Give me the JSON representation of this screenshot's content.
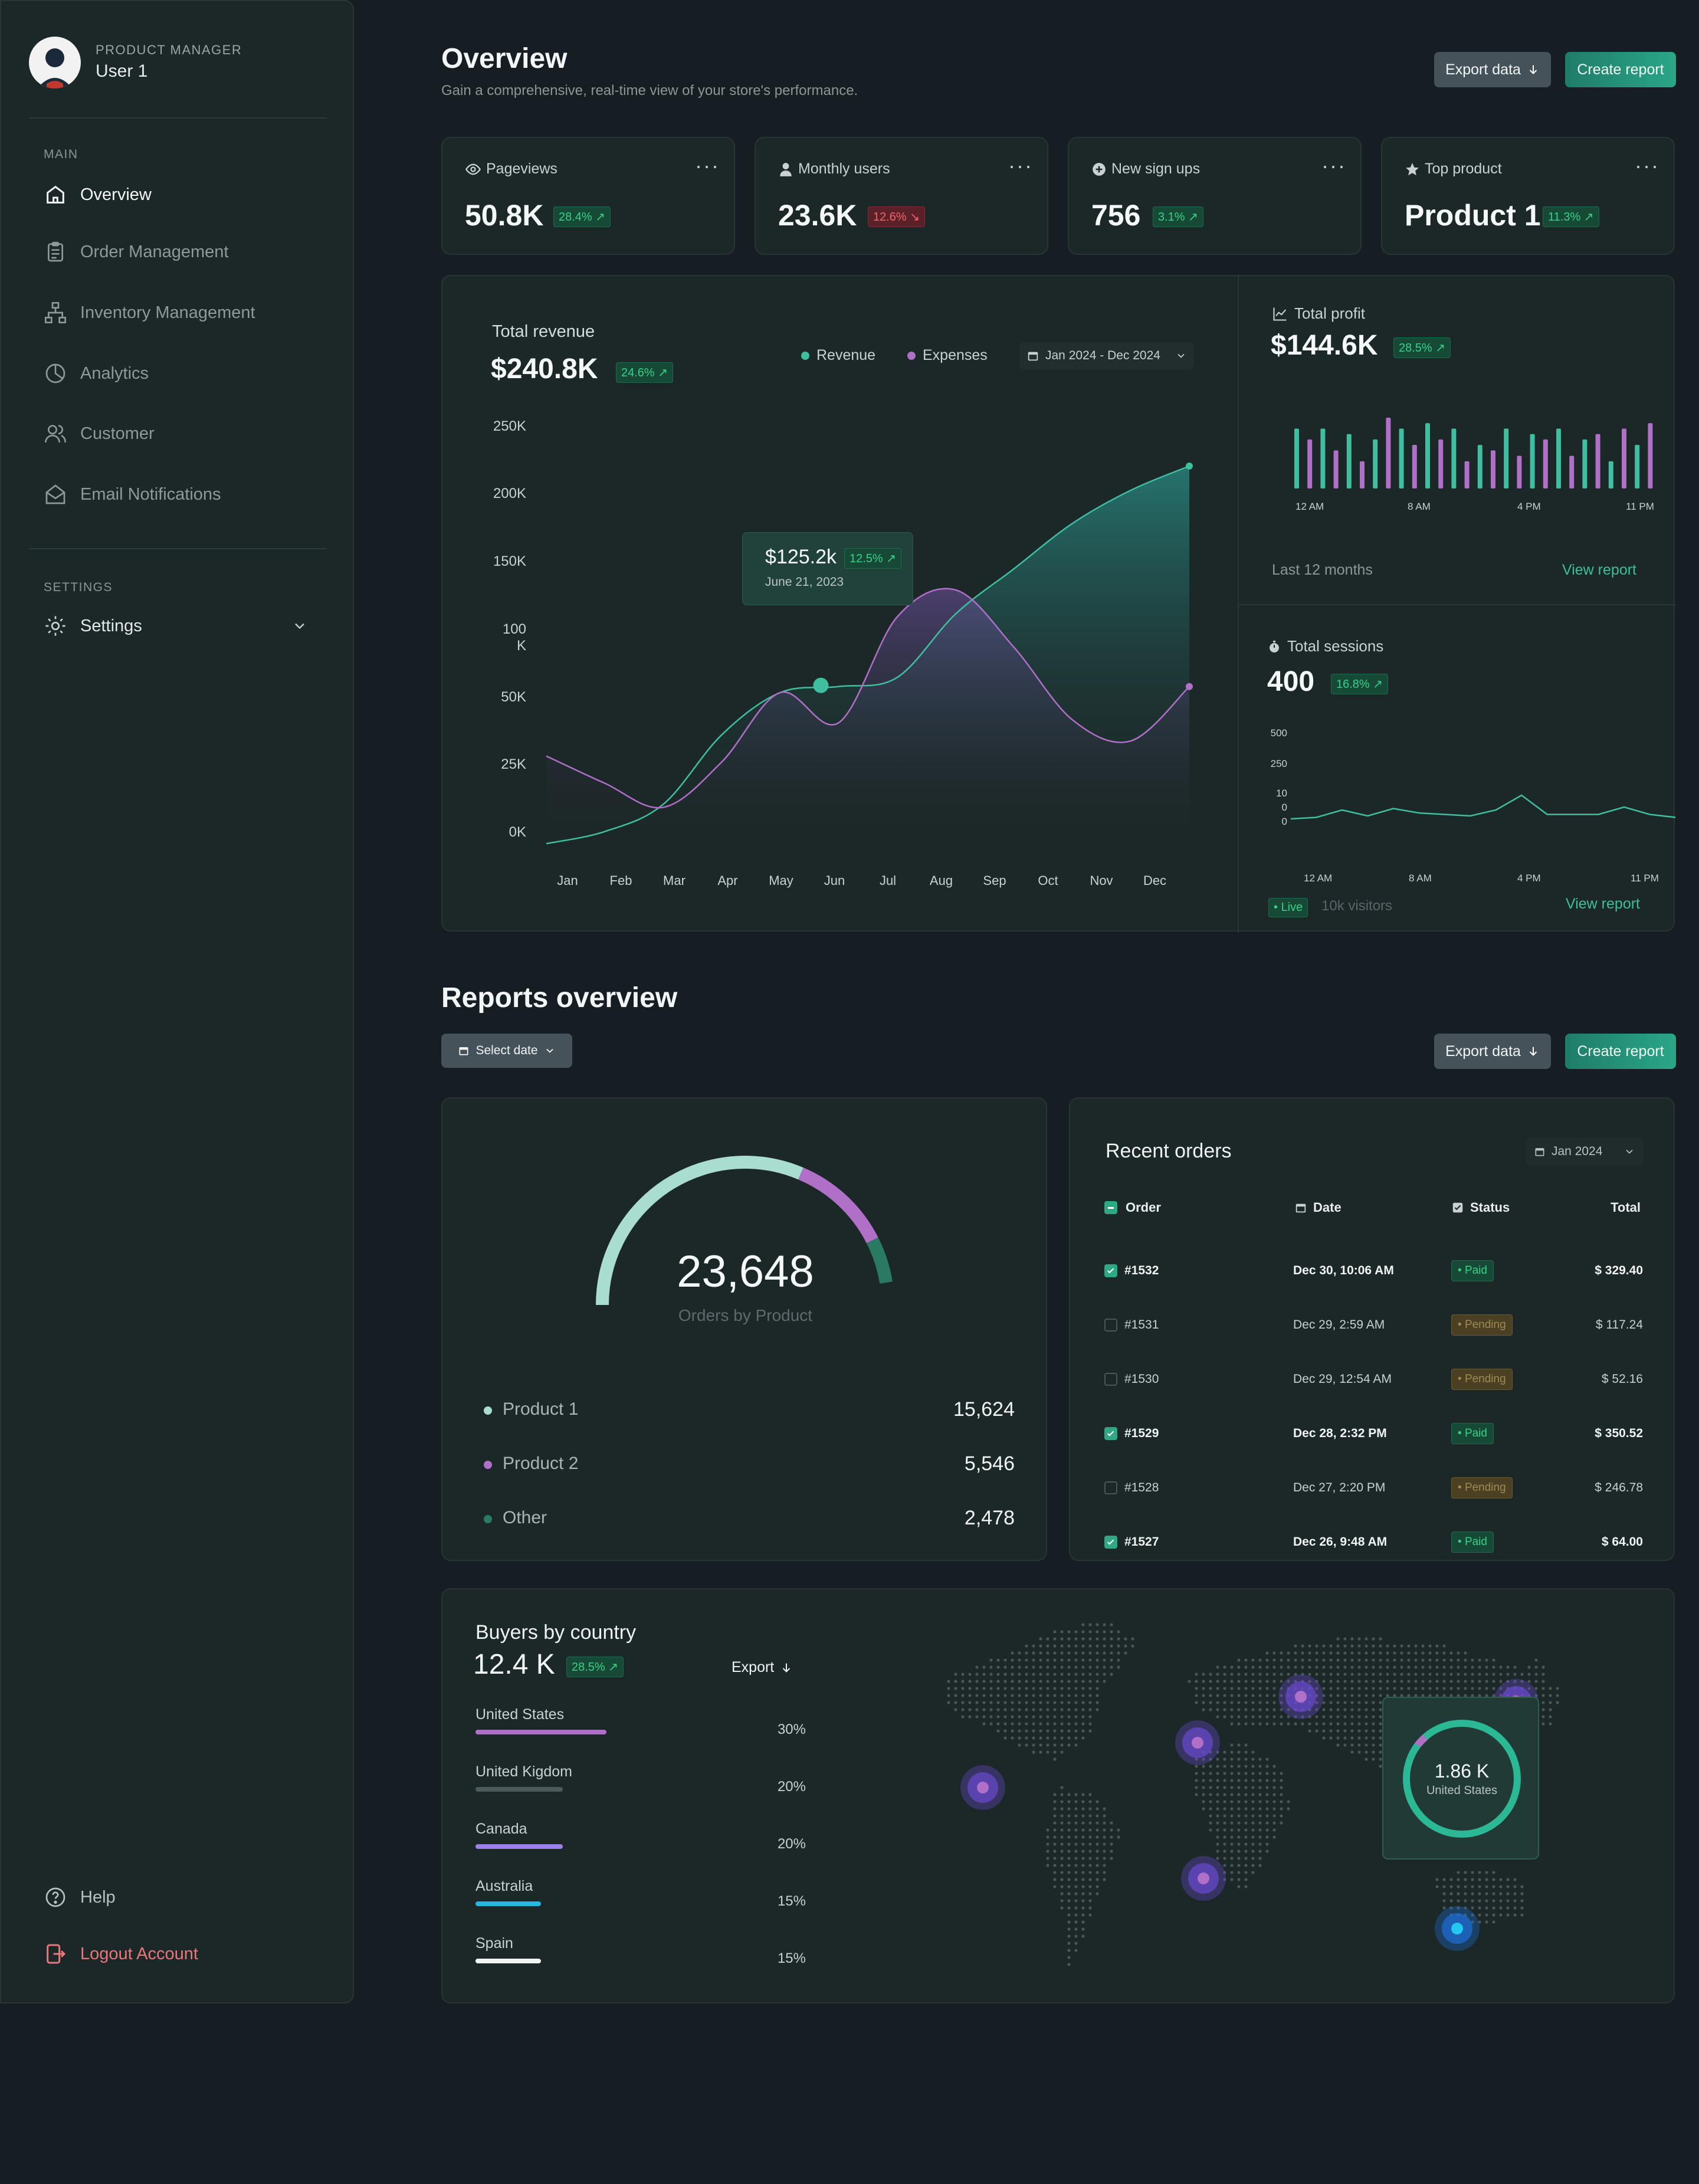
{
  "user": {
    "role": "PRODUCT MANAGER",
    "name": "User 1"
  },
  "sidebar": {
    "main_label": "MAIN",
    "items": [
      {
        "label": "Overview",
        "icon": "home-icon",
        "active": true
      },
      {
        "label": "Order Management",
        "icon": "clipboard-icon"
      },
      {
        "label": "Inventory Management",
        "icon": "sitemap-icon"
      },
      {
        "label": "Analytics",
        "icon": "pie-chart-icon"
      },
      {
        "label": "Customer",
        "icon": "users-icon"
      },
      {
        "label": "Email Notifications",
        "icon": "mail-open-icon"
      }
    ],
    "settings_label": "SETTINGS",
    "settings_item": "Settings",
    "help": "Help",
    "logout": "Logout Account"
  },
  "header": {
    "title": "Overview",
    "subtitle": "Gain a comprehensive, real-time view of your store's performance.",
    "export": "Export data",
    "create": "Create report"
  },
  "stats": [
    {
      "label": "Pageviews",
      "icon": "eye-icon",
      "value": "50.8K",
      "change": "28.4%",
      "trend": "up"
    },
    {
      "label": "Monthly users",
      "icon": "user-icon",
      "value": "23.6K",
      "change": "12.6%",
      "trend": "down"
    },
    {
      "label": "New sign ups",
      "icon": "plus-circle-icon",
      "value": "756",
      "change": "3.1%",
      "trend": "up"
    },
    {
      "label": "Top product",
      "icon": "star-icon",
      "value": "Product 1",
      "change": "11.3%",
      "trend": "up"
    }
  ],
  "revenue": {
    "title": "Total revenue",
    "value": "$240.8K",
    "change": "24.6%",
    "legend_revenue": "Revenue",
    "legend_expenses": "Expenses",
    "date_range": "Jan 2024 - Dec 2024",
    "tooltip_value": "$125.2k",
    "tooltip_change": "12.5%",
    "tooltip_date": "June 21, 2023",
    "colors": {
      "revenue": "#3fbfa0",
      "expenses": "#b070c8"
    }
  },
  "chart_data": [
    {
      "type": "area",
      "title": "Total revenue",
      "categories": [
        "Jan",
        "Feb",
        "Mar",
        "Apr",
        "May",
        "Jun",
        "Jul",
        "Aug",
        "Sep",
        "Oct",
        "Nov",
        "Dec"
      ],
      "y_ticks": [
        "250K",
        "200K",
        "150K",
        "100 K",
        "50K",
        "25K",
        "0K"
      ],
      "series": [
        {
          "name": "Revenue",
          "values": [
            0,
            8,
            26,
            72,
            100,
            104,
            110,
            152,
            182,
            212,
            234,
            250
          ]
        },
        {
          "name": "Expenses",
          "values": [
            58,
            40,
            24,
            54,
            100,
            80,
            150,
            168,
            130,
            82,
            68,
            104
          ]
        }
      ],
      "tooltip_point": {
        "x": "Jun",
        "value": 125.2
      }
    },
    {
      "type": "bar",
      "title": "Total profit",
      "x_ticks": [
        "12 AM",
        "8 AM",
        "4 PM",
        "11 PM"
      ],
      "values": [
        22,
        18,
        22,
        14,
        20,
        10,
        18,
        26,
        22,
        16,
        24,
        18,
        22,
        10,
        16,
        14,
        22,
        12,
        20,
        18,
        22,
        12,
        18,
        20,
        10,
        22,
        16,
        24
      ],
      "colors": [
        "#3fbfa0",
        "#b070c8"
      ]
    },
    {
      "type": "line",
      "title": "Total sessions",
      "x_ticks": [
        "12 AM",
        "8 AM",
        "4 PM",
        "11 PM"
      ],
      "y_ticks": [
        "500",
        "250",
        "10",
        "0",
        "0"
      ],
      "values": [
        0,
        10,
        60,
        20,
        70,
        40,
        30,
        20,
        60,
        160,
        30,
        30,
        30,
        80,
        30,
        10
      ]
    }
  ],
  "profit": {
    "title": "Total profit",
    "value": "$144.6K",
    "change": "28.5%",
    "period": "Last 12 months",
    "link": "View report"
  },
  "sessions": {
    "title": "Total sessions",
    "value": "400",
    "change": "16.8%",
    "live": "Live",
    "visitors": "10k visitors",
    "link": "View report"
  },
  "reports": {
    "title": "Reports overview",
    "select_date": "Select date",
    "export": "Export data",
    "create": "Create report"
  },
  "orders_by_product": {
    "total": "23,648",
    "caption": "Orders by Product",
    "items": [
      {
        "name": "Product 1",
        "value": "15,624",
        "color": "#a9ddd0"
      },
      {
        "name": "Product 2",
        "value": "5,546",
        "color": "#b070c8"
      },
      {
        "name": "Other",
        "value": "2,478",
        "color": "#2a7a62"
      }
    ]
  },
  "recent_orders": {
    "title": "Recent orders",
    "filter": "Jan 2024",
    "headers": {
      "order": "Order",
      "date": "Date",
      "status": "Status",
      "total": "Total"
    },
    "rows": [
      {
        "id": "#1532",
        "date": "Dec 30, 10:06 AM",
        "status": "Paid",
        "total": "$ 329.40",
        "checked": true
      },
      {
        "id": "#1531",
        "date": "Dec 29, 2:59 AM",
        "status": "Pending",
        "total": "$ 117.24",
        "checked": false
      },
      {
        "id": "#1530",
        "date": "Dec 29, 12:54 AM",
        "status": "Pending",
        "total": "$ 52.16",
        "checked": false
      },
      {
        "id": "#1529",
        "date": "Dec 28, 2:32 PM",
        "status": "Paid",
        "total": "$ 350.52",
        "checked": true
      },
      {
        "id": "#1528",
        "date": "Dec 27, 2:20 PM",
        "status": "Pending",
        "total": "$ 246.78",
        "checked": false
      },
      {
        "id": "#1527",
        "date": "Dec 26, 9:48 AM",
        "status": "Paid",
        "total": "$ 64.00",
        "checked": true
      }
    ]
  },
  "buyers": {
    "title": "Buyers by country",
    "value": "12.4 K",
    "change": "28.5%",
    "export": "Export",
    "countries": [
      {
        "name": "United States",
        "pct": "30%",
        "fill": 0.3,
        "color": "#b070c8"
      },
      {
        "name": "United Kigdom",
        "pct": "20%",
        "fill": 0.2,
        "color": "#4d5a5a"
      },
      {
        "name": "Canada",
        "pct": "20%",
        "fill": 0.2,
        "color": "#9a82e6"
      },
      {
        "name": "Australia",
        "pct": "15%",
        "fill": 0.15,
        "color": "#22b8e0"
      },
      {
        "name": "Spain",
        "pct": "15%",
        "fill": 0.15,
        "color": "#f2f4f4"
      }
    ],
    "map_popup_value": "1.86 K",
    "map_popup_label": "United States"
  }
}
